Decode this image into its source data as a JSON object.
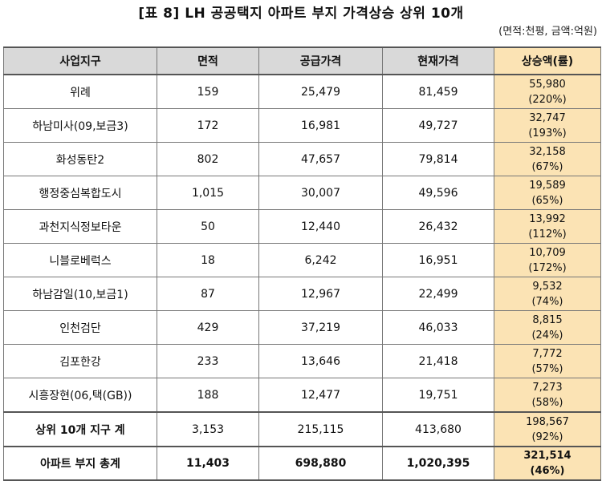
{
  "title": "[표 8] LH 공공택지 아파트 부지 가격상승 상위 10개",
  "unit_note": "(면적:천평, 금액:억원)",
  "headers": [
    "사업지구",
    "면적",
    "공급가격",
    "현재가격",
    "상승액(률)"
  ],
  "rows": [
    {
      "name": "위례",
      "area": "159",
      "supply": "25,479",
      "current": "81,459",
      "increase": "55,980",
      "rate": "(220%)"
    },
    {
      "name": "하남미사(09,보금3)",
      "area": "172",
      "supply": "16,981",
      "current": "49,727",
      "increase": "32,747",
      "rate": "(193%)"
    },
    {
      "name": "화성동탄2",
      "area": "802",
      "supply": "47,657",
      "current": "79,814",
      "increase": "32,158",
      "rate": "(67%)"
    },
    {
      "name": "행정중심복합도시",
      "area": "1,015",
      "supply": "30,007",
      "current": "49,596",
      "increase": "19,589",
      "rate": "(65%)"
    },
    {
      "name": "과천지식정보타운",
      "area": "50",
      "supply": "12,440",
      "current": "26,432",
      "increase": "13,992",
      "rate": "(112%)"
    },
    {
      "name": "니블로베럭스",
      "area": "18",
      "supply": "6,242",
      "current": "16,951",
      "increase": "10,709",
      "rate": "(172%)"
    },
    {
      "name": "하남감일(10,보금1)",
      "area": "87",
      "supply": "12,967",
      "current": "22,499",
      "increase": "9,532",
      "rate": "(74%)"
    },
    {
      "name": "인천검단",
      "area": "429",
      "supply": "37,219",
      "current": "46,033",
      "increase": "8,815",
      "rate": "(24%)"
    },
    {
      "name": "김포한강",
      "area": "233",
      "supply": "13,646",
      "current": "21,418",
      "increase": "7,772",
      "rate": "(57%)"
    },
    {
      "name": "시흥장현(06,택(GB))",
      "area": "188",
      "supply": "12,477",
      "current": "19,751",
      "increase": "7,273",
      "rate": "(58%)"
    }
  ],
  "subtotal": {
    "name": "상위 10개 지구 계",
    "area": "3,153",
    "supply": "215,115",
    "current": "413,680",
    "increase": "198,567",
    "rate": "(92%)"
  },
  "total": {
    "name": "아파트 부지 총계",
    "area": "11,403",
    "supply": "698,880",
    "current": "1,020,395",
    "increase": "321,514",
    "rate": "(46%)"
  },
  "colors": {
    "header_bg": "#d9d9d9",
    "increase_bg": "#fbe3b4"
  }
}
